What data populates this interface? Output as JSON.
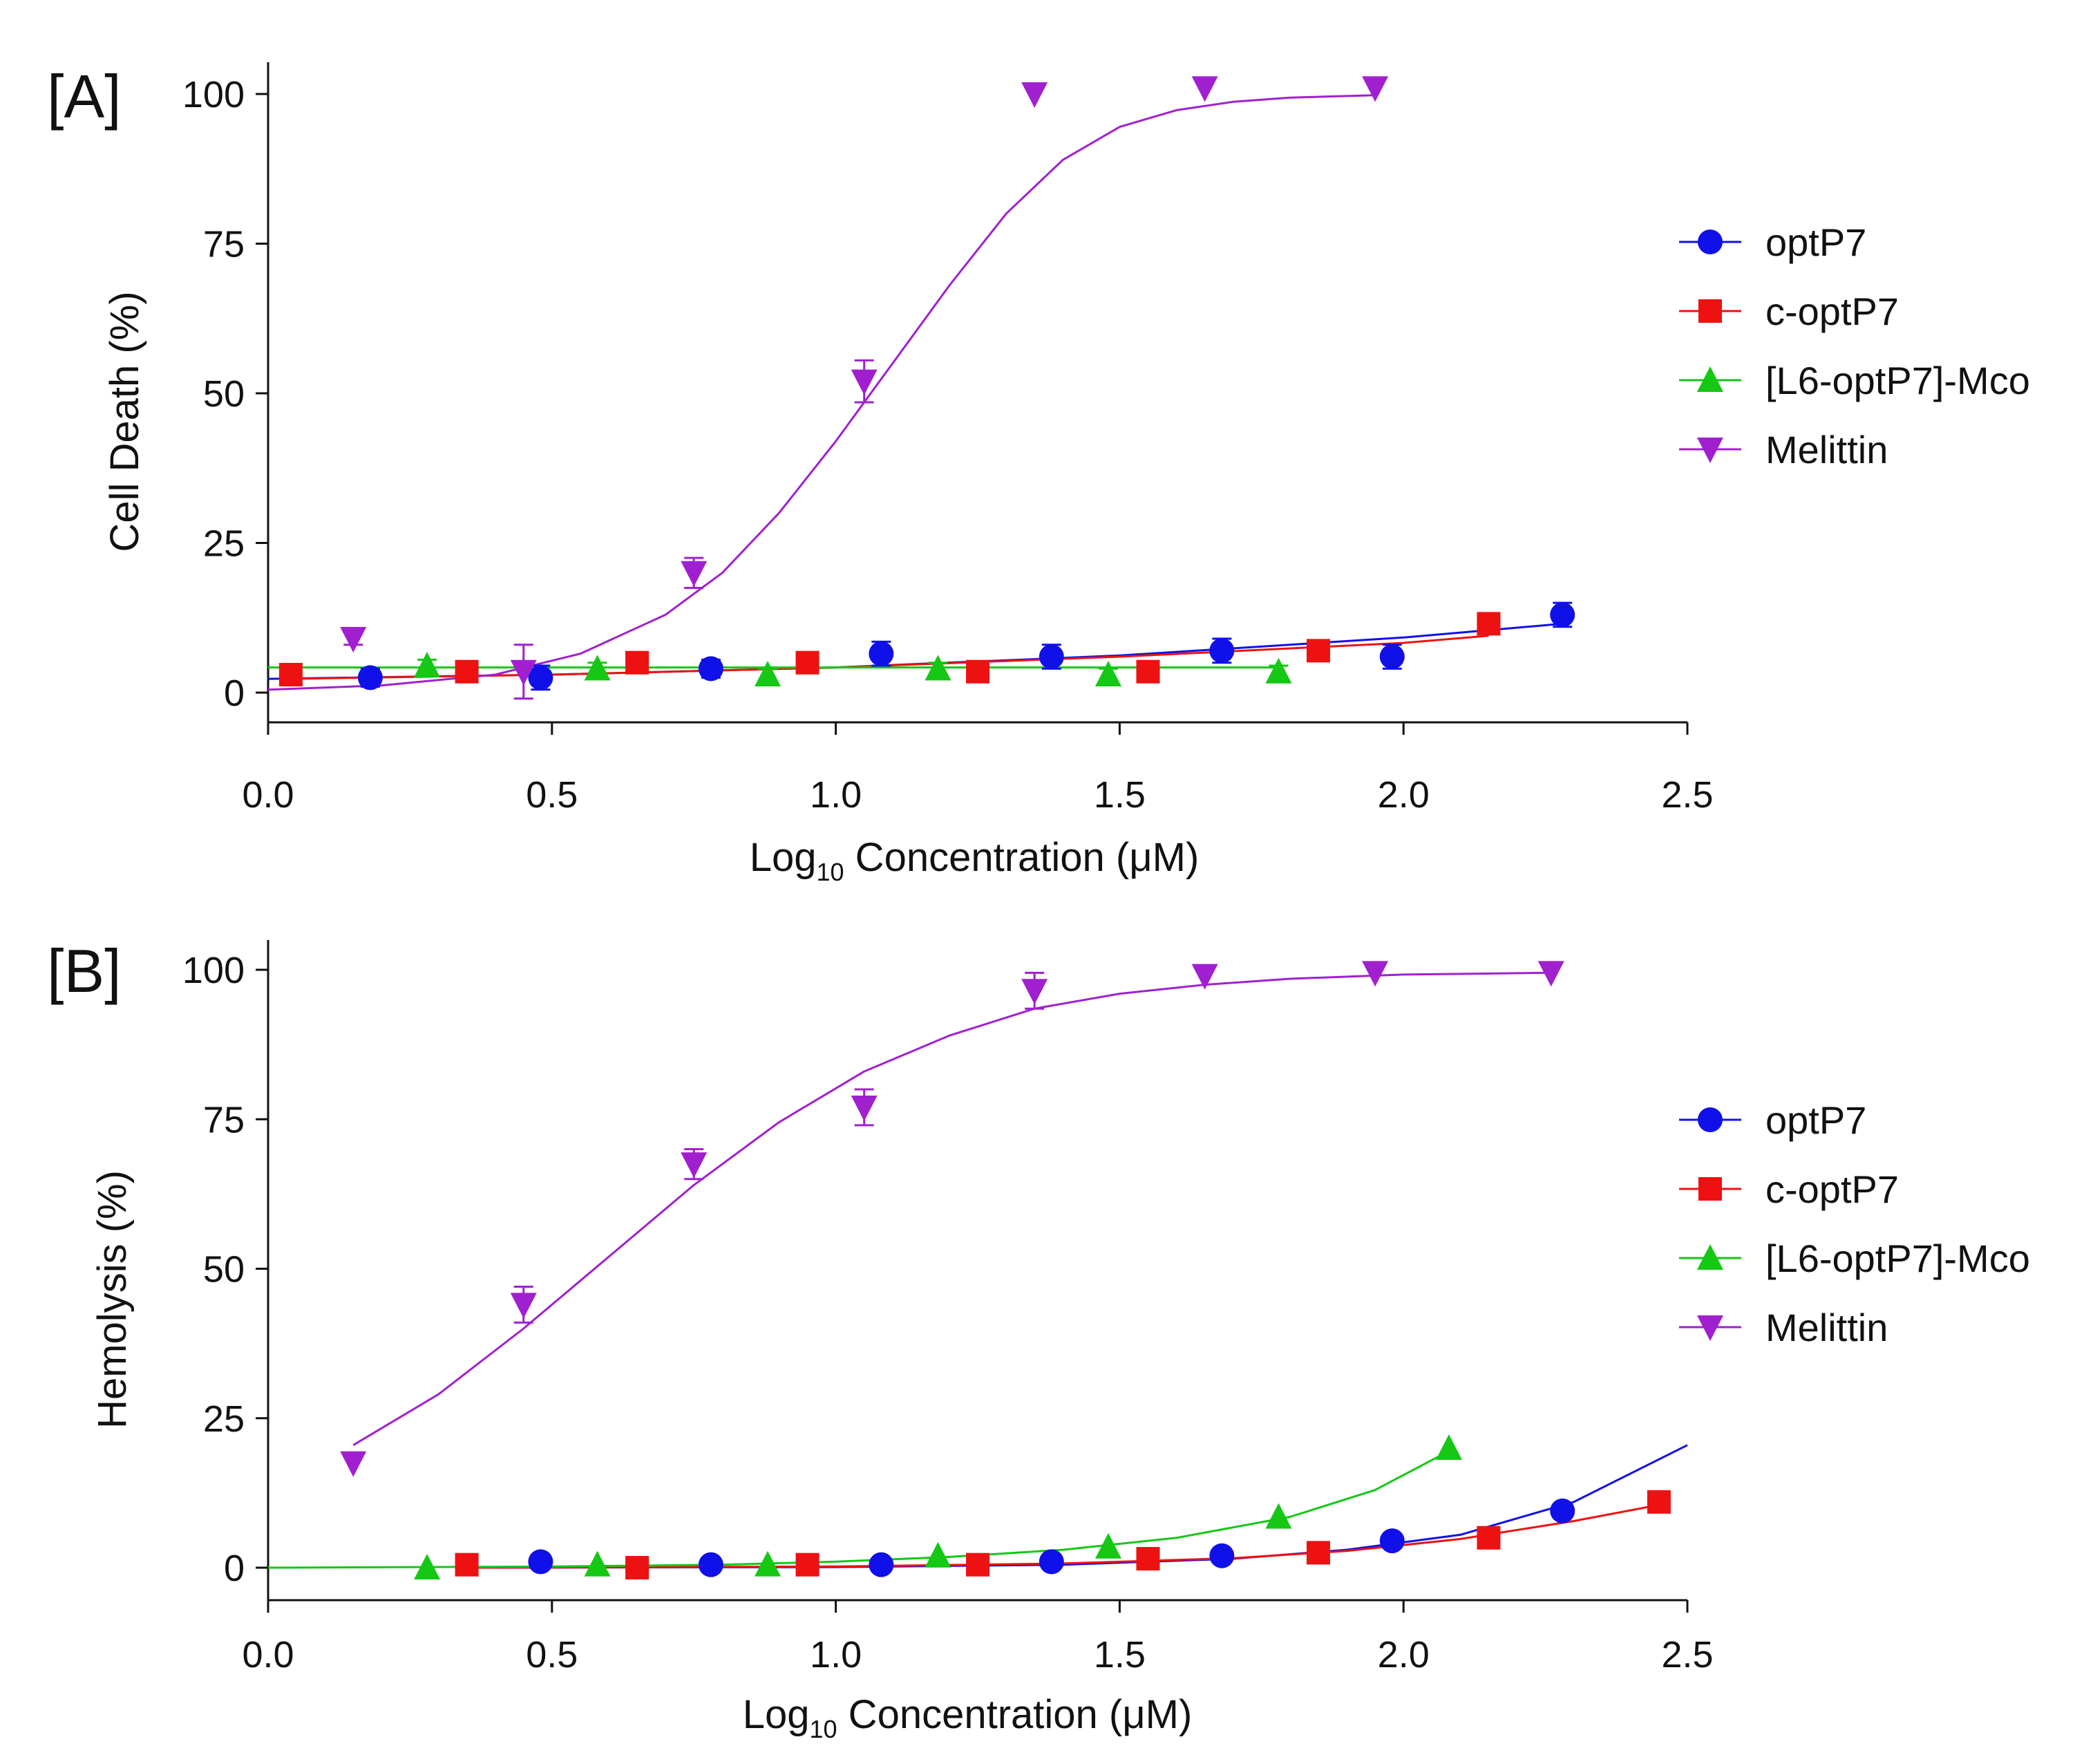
{
  "chart_data": [
    {
      "panel": "[A]",
      "type": "scatter",
      "title": "",
      "xlabel": "Log",
      "xlabel_subscript": "10",
      "xlabel_suffix": " Concentration (μM)",
      "ylabel": "Cell Death (%)",
      "xlim": [
        0.0,
        2.5
      ],
      "ylim": [
        -5,
        105
      ],
      "xticks": [
        0.0,
        0.5,
        1.0,
        1.5,
        2.0,
        2.5
      ],
      "xtick_labels": [
        "0.0",
        "0.5",
        "1.0",
        "1.5",
        "2.0",
        "2.5"
      ],
      "yticks": [
        0,
        25,
        50,
        75,
        100
      ],
      "ytick_labels": [
        "0",
        "25",
        "50",
        "75",
        "100"
      ],
      "legend_position": "right",
      "series": [
        {
          "name": "optP7",
          "marker": "circle",
          "color": "#1010e8",
          "points": [
            {
              "x": 0.18,
              "y": 2.5,
              "err": 1.5
            },
            {
              "x": 0.48,
              "y": 2.5,
              "err": 2.0
            },
            {
              "x": 0.78,
              "y": 4.0,
              "err": 1.5
            },
            {
              "x": 1.08,
              "y": 6.5,
              "err": 2.0
            },
            {
              "x": 1.38,
              "y": 6.0,
              "err": 2.0
            },
            {
              "x": 1.68,
              "y": 7.0,
              "err": 2.0
            },
            {
              "x": 1.98,
              "y": 6.0,
              "err": 2.0
            },
            {
              "x": 2.28,
              "y": 13.0,
              "err": 2.0
            }
          ],
          "fit": [
            [
              0.0,
              2.3
            ],
            [
              0.5,
              3.0
            ],
            [
              1.0,
              4.2
            ],
            [
              1.5,
              6.2
            ],
            [
              2.0,
              9.2
            ],
            [
              2.28,
              11.5
            ]
          ]
        },
        {
          "name": "c-optP7",
          "marker": "square",
          "color": "#ee1111",
          "points": [
            {
              "x": 0.04,
              "y": 3.0,
              "err": 1.0
            },
            {
              "x": 0.35,
              "y": 3.5,
              "err": 1.0
            },
            {
              "x": 0.65,
              "y": 5.0,
              "err": 1.0
            },
            {
              "x": 0.95,
              "y": 5.0,
              "err": 1.0
            },
            {
              "x": 1.25,
              "y": 3.5,
              "err": 1.0
            },
            {
              "x": 1.55,
              "y": 3.5,
              "err": 1.0
            },
            {
              "x": 1.85,
              "y": 7.0,
              "err": 1.0
            },
            {
              "x": 2.15,
              "y": 11.5,
              "err": 1.0
            }
          ],
          "fit": [
            [
              0.04,
              2.3
            ],
            [
              0.5,
              3.0
            ],
            [
              1.0,
              4.2
            ],
            [
              1.5,
              6.0
            ],
            [
              2.0,
              8.3
            ],
            [
              2.15,
              9.5
            ]
          ]
        },
        {
          "name": "[L6-optP7]-Mco",
          "marker": "triangle-up",
          "color": "#14c814",
          "points": [
            {
              "x": 0.28,
              "y": 4.5,
              "err": 1.0
            },
            {
              "x": 0.58,
              "y": 4.0,
              "err": 1.0
            },
            {
              "x": 0.88,
              "y": 3.0,
              "err": 1.0
            },
            {
              "x": 1.18,
              "y": 4.0,
              "err": 1.0
            },
            {
              "x": 1.48,
              "y": 3.0,
              "err": 1.0
            },
            {
              "x": 1.78,
              "y": 3.5,
              "err": 1.0
            }
          ],
          "fit": [
            [
              0.0,
              4.2
            ],
            [
              1.78,
              4.2
            ]
          ]
        },
        {
          "name": "Melittin",
          "marker": "triangle-down",
          "color": "#a020d0",
          "points": [
            {
              "x": 0.15,
              "y": 9.0,
              "err": 1.0
            },
            {
              "x": 0.45,
              "y": 3.5,
              "err": 4.5
            },
            {
              "x": 0.75,
              "y": 20.0,
              "err": 2.5
            },
            {
              "x": 1.05,
              "y": 52.0,
              "err": 3.5
            },
            {
              "x": 1.35,
              "y": 100.0,
              "err": 0.5
            },
            {
              "x": 1.65,
              "y": 101.0,
              "err": 0.5
            },
            {
              "x": 1.95,
              "y": 101.0,
              "err": 0.5
            }
          ],
          "fit": [
            [
              0.0,
              0.5
            ],
            [
              0.2,
              1.2
            ],
            [
              0.4,
              3.0
            ],
            [
              0.55,
              6.5
            ],
            [
              0.7,
              13.0
            ],
            [
              0.8,
              20.0
            ],
            [
              0.9,
              30.0
            ],
            [
              1.0,
              42.0
            ],
            [
              1.1,
              55.0
            ],
            [
              1.2,
              68.0
            ],
            [
              1.3,
              80.0
            ],
            [
              1.4,
              89.0
            ],
            [
              1.5,
              94.5
            ],
            [
              1.6,
              97.3
            ],
            [
              1.7,
              98.7
            ],
            [
              1.8,
              99.4
            ],
            [
              1.95,
              99.8
            ]
          ]
        }
      ]
    },
    {
      "panel": "[B]",
      "type": "scatter",
      "title": "",
      "xlabel": "Log",
      "xlabel_subscript": "10",
      "xlabel_suffix": " Concentration (μM)",
      "ylabel": "Hemolysis (%)",
      "xlim": [
        0.0,
        2.5
      ],
      "ylim": [
        -5,
        105
      ],
      "xticks": [
        0.0,
        0.5,
        1.0,
        1.5,
        2.0,
        2.5
      ],
      "xtick_labels": [
        "0.0",
        "0.5",
        "1.0",
        "1.5",
        "2.0",
        "2.5"
      ],
      "yticks": [
        0,
        25,
        50,
        75,
        100
      ],
      "ytick_labels": [
        "0",
        "25",
        "50",
        "75",
        "100"
      ],
      "legend_position": "right",
      "series": [
        {
          "name": "optP7",
          "marker": "circle",
          "color": "#1010e8",
          "points": [
            {
              "x": 0.48,
              "y": 1.0,
              "err": 0.5
            },
            {
              "x": 0.78,
              "y": 0.5,
              "err": 0.5
            },
            {
              "x": 1.08,
              "y": 0.5,
              "err": 0.5
            },
            {
              "x": 1.38,
              "y": 1.0,
              "err": 0.5
            },
            {
              "x": 1.68,
              "y": 2.0,
              "err": 0.5
            },
            {
              "x": 1.98,
              "y": 4.5,
              "err": 0.5
            },
            {
              "x": 2.28,
              "y": 9.5,
              "err": 0.5
            }
          ],
          "fit": [
            [
              0.35,
              0.0
            ],
            [
              1.0,
              0.1
            ],
            [
              1.4,
              0.5
            ],
            [
              1.7,
              1.5
            ],
            [
              1.9,
              3.0
            ],
            [
              2.1,
              5.5
            ],
            [
              2.3,
              11.0
            ],
            [
              2.5,
              20.5
            ]
          ]
        },
        {
          "name": "c-optP7",
          "marker": "square",
          "color": "#ee1111",
          "points": [
            {
              "x": 0.35,
              "y": 0.5,
              "err": 0.5
            },
            {
              "x": 0.65,
              "y": 0.0,
              "err": 0.5
            },
            {
              "x": 0.95,
              "y": 0.5,
              "err": 0.5
            },
            {
              "x": 1.25,
              "y": 0.5,
              "err": 0.5
            },
            {
              "x": 1.55,
              "y": 1.5,
              "err": 0.5
            },
            {
              "x": 1.85,
              "y": 2.5,
              "err": 0.5
            },
            {
              "x": 2.15,
              "y": 5.0,
              "err": 0.5
            },
            {
              "x": 2.45,
              "y": 11.0,
              "err": 0.5
            }
          ],
          "fit": [
            [
              0.35,
              0.0
            ],
            [
              1.0,
              0.2
            ],
            [
              1.4,
              0.7
            ],
            [
              1.7,
              1.6
            ],
            [
              1.9,
              2.8
            ],
            [
              2.1,
              4.8
            ],
            [
              2.3,
              7.8
            ],
            [
              2.45,
              10.5
            ]
          ]
        },
        {
          "name": "[L6-optP7]-Mco",
          "marker": "triangle-up",
          "color": "#14c814",
          "points": [
            {
              "x": 0.28,
              "y": 0.0,
              "err": 0.5
            },
            {
              "x": 0.58,
              "y": 0.5,
              "err": 0.5
            },
            {
              "x": 0.88,
              "y": 0.5,
              "err": 0.5
            },
            {
              "x": 1.18,
              "y": 2.0,
              "err": 0.5
            },
            {
              "x": 1.48,
              "y": 3.5,
              "err": 0.5
            },
            {
              "x": 1.78,
              "y": 8.5,
              "err": 0.5
            },
            {
              "x": 2.08,
              "y": 20.0,
              "err": 0.5
            }
          ],
          "fit": [
            [
              0.0,
              0.0
            ],
            [
              0.5,
              0.2
            ],
            [
              0.8,
              0.5
            ],
            [
              1.0,
              1.0
            ],
            [
              1.2,
              1.8
            ],
            [
              1.4,
              3.0
            ],
            [
              1.6,
              5.0
            ],
            [
              1.8,
              8.5
            ],
            [
              1.95,
              13.0
            ],
            [
              2.08,
              19.5
            ]
          ]
        },
        {
          "name": "Melittin",
          "marker": "triangle-down",
          "color": "#a020d0",
          "points": [
            {
              "x": 0.15,
              "y": 17.5,
              "err": 0.5
            },
            {
              "x": 0.45,
              "y": 44.0,
              "err": 3.0
            },
            {
              "x": 0.75,
              "y": 67.5,
              "err": 2.5
            },
            {
              "x": 1.05,
              "y": 77.0,
              "err": 3.0
            },
            {
              "x": 1.35,
              "y": 96.5,
              "err": 3.0
            },
            {
              "x": 1.65,
              "y": 99.0,
              "err": 0.5
            },
            {
              "x": 1.95,
              "y": 99.5,
              "err": 0.5
            },
            {
              "x": 2.26,
              "y": 99.5,
              "err": 0.5
            }
          ],
          "fit": [
            [
              0.15,
              20.5
            ],
            [
              0.3,
              29.0
            ],
            [
              0.45,
              40.0
            ],
            [
              0.6,
              52.0
            ],
            [
              0.75,
              64.0
            ],
            [
              0.9,
              74.5
            ],
            [
              1.05,
              83.0
            ],
            [
              1.2,
              89.0
            ],
            [
              1.35,
              93.5
            ],
            [
              1.5,
              96.0
            ],
            [
              1.65,
              97.5
            ],
            [
              1.8,
              98.5
            ],
            [
              2.0,
              99.2
            ],
            [
              2.26,
              99.5
            ]
          ]
        }
      ]
    }
  ]
}
